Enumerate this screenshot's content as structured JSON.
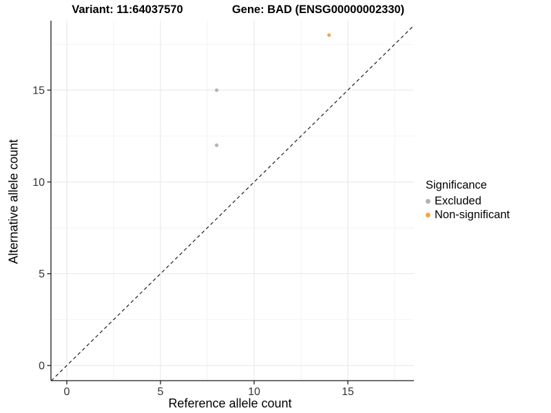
{
  "title": {
    "left": "Variant: 11:64037570",
    "right": "Gene: BAD (ENSG00000002330)"
  },
  "axes": {
    "x": {
      "label": "Reference allele count",
      "ticks": [
        0,
        5,
        10,
        15
      ]
    },
    "y": {
      "label": "Alternative allele count",
      "ticks": [
        0,
        5,
        10,
        15
      ]
    }
  },
  "legend": {
    "title": "Significance",
    "items": [
      {
        "label": "Excluded",
        "color": "#B4B4B4"
      },
      {
        "label": "Non-significant",
        "color": "#F6A73E"
      }
    ]
  },
  "colors": {
    "grid_major": "#E6E6E6",
    "grid_minor": "#F2F2F2",
    "axis": "#1A1A1A",
    "tick_label": "#333333",
    "reference_line": "#1A1A1A"
  },
  "chart_data": {
    "type": "scatter",
    "title": "Variant: 11:64037570 | Gene: BAD (ENSG00000002330)",
    "xlabel": "Reference allele count",
    "ylabel": "Alternative allele count",
    "xlim": [
      -0.85,
      18.55
    ],
    "ylim": [
      -0.83,
      18.8
    ],
    "x_ticks": [
      0,
      5,
      10,
      15
    ],
    "y_ticks": [
      0,
      5,
      10,
      15
    ],
    "grid": {
      "x_major": [
        0,
        5,
        10,
        15
      ],
      "x_minor": [
        2.5,
        7.5,
        12.5,
        17.5
      ],
      "y_major": [
        0,
        5,
        10,
        15
      ],
      "y_minor": [
        2.5,
        7.5,
        12.5,
        17.5
      ]
    },
    "legend_title": "Significance",
    "legend_position": "right",
    "series": [
      {
        "name": "Excluded",
        "color": "#B4B4B4",
        "points": [
          [
            8,
            15
          ],
          [
            8,
            12
          ]
        ]
      },
      {
        "name": "Non-significant",
        "color": "#F6A73E",
        "points": [
          [
            14,
            18
          ]
        ]
      }
    ],
    "reference_line": {
      "style": "dashed",
      "slope": 1,
      "intercept": 0,
      "color": "#1A1A1A"
    }
  }
}
